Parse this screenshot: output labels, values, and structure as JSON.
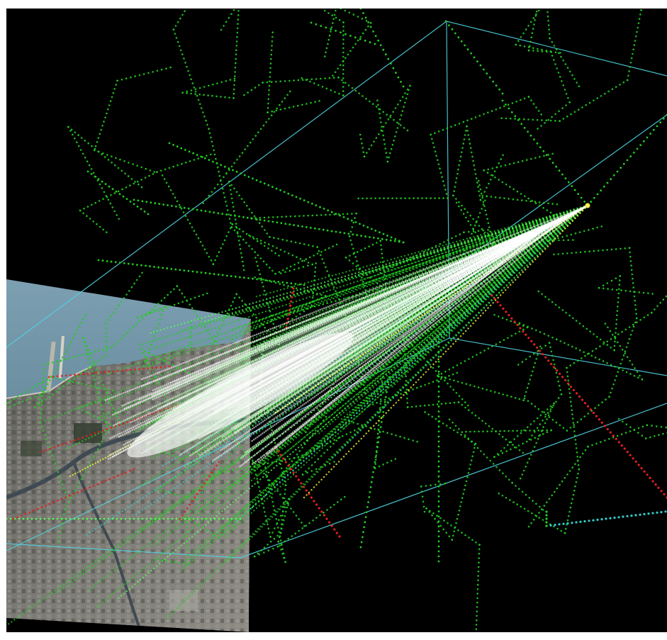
{
  "scene": {
    "background_color": "#000000",
    "frame_color": "#ffffff",
    "bounding_box_color": "#4fd3e0",
    "track_colors": {
      "primary": "#22cc22",
      "secondary": "#55ff55",
      "highlight": "#ffffff",
      "energetic": "#ffff33",
      "muon": "#e02020",
      "cyan": "#33cccc"
    },
    "aerial_map_overlay": true,
    "vertex_marker_color": "#ffee55"
  }
}
